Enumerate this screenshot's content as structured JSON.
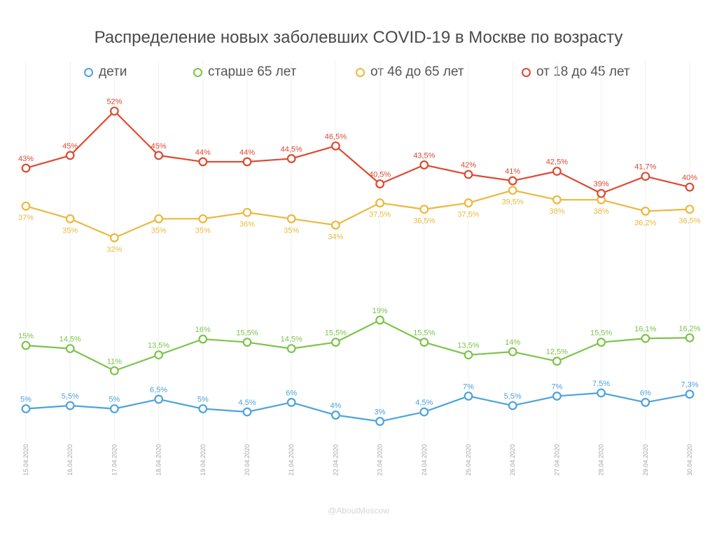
{
  "chart_data": {
    "type": "line",
    "title": "Распределение новых заболевших COVID-19 в Москве по возрасту",
    "x": [
      "15.04.2020",
      "16.04.2020",
      "17.04.2020",
      "18.04.2020",
      "19.04.2020",
      "20.04.2020",
      "21.04.2020",
      "22.04.2020",
      "23.04.2020",
      "24.04.2020",
      "25.04.2020",
      "26.04.2020",
      "27.04.2020",
      "28.04.2020",
      "29.04.2020",
      "30.04.2020"
    ],
    "ylim": [
      0,
      100
    ],
    "grid": "vertical",
    "legend_position": "top",
    "series": [
      {
        "name": "дети",
        "color": "#4da3dc",
        "values": [
          5,
          5.5,
          5,
          6.5,
          5,
          4.5,
          6,
          4,
          3,
          4.5,
          7,
          5.5,
          7,
          7.5,
          6,
          7.3
        ],
        "labels": [
          "5%",
          "5,5%",
          "5%",
          "6,5%",
          "5%",
          "4,5%",
          "6%",
          "4%",
          "3%",
          "4,5%",
          "7%",
          "5,5%",
          "7%",
          "7,5%",
          "6%",
          "7,3%"
        ]
      },
      {
        "name": "старше 65 лет",
        "color": "#7cc44a",
        "values": [
          15,
          14.5,
          11,
          13.5,
          16,
          15.5,
          14.5,
          15.5,
          19,
          15.5,
          13.5,
          14,
          12.5,
          15.5,
          16.1,
          16.2
        ],
        "labels": [
          "15%",
          "14,5%",
          "11%",
          "13,5%",
          "16%",
          "15,5%",
          "14,5%",
          "15,5%",
          "19%",
          "15,5%",
          "13,5%",
          "14%",
          "12,5%",
          "15,5%",
          "16,1%",
          "16,2%"
        ]
      },
      {
        "name": "от 46 до 65 лет",
        "color": "#eab93d",
        "values": [
          37,
          35,
          32,
          35,
          35,
          36,
          35,
          34,
          37.5,
          36.5,
          37.5,
          39.5,
          38,
          38,
          36.2,
          36.5
        ],
        "labels": [
          "37%",
          "35%",
          "32%",
          "35%",
          "35%",
          "36%",
          "35%",
          "34%",
          "37,5%",
          "36,5%",
          "37,5%",
          "39,5%",
          "38%",
          "38%",
          "36,2%",
          "36,5%"
        ]
      },
      {
        "name": "от 18 до 45 лет",
        "color": "#dc4a32",
        "values": [
          43,
          45,
          52,
          45,
          44,
          44,
          44.5,
          46.5,
          40.5,
          43.5,
          42,
          41,
          42.5,
          39,
          41.7,
          40
        ],
        "labels": [
          "43%",
          "45%",
          "52%",
          "45%",
          "44%",
          "44%",
          "44,5%",
          "46,5%",
          "40,5%",
          "43,5%",
          "42%",
          "41%",
          "42,5%",
          "39%",
          "41,7%",
          "40%"
        ]
      }
    ]
  },
  "watermark": "@AboutMoscow"
}
